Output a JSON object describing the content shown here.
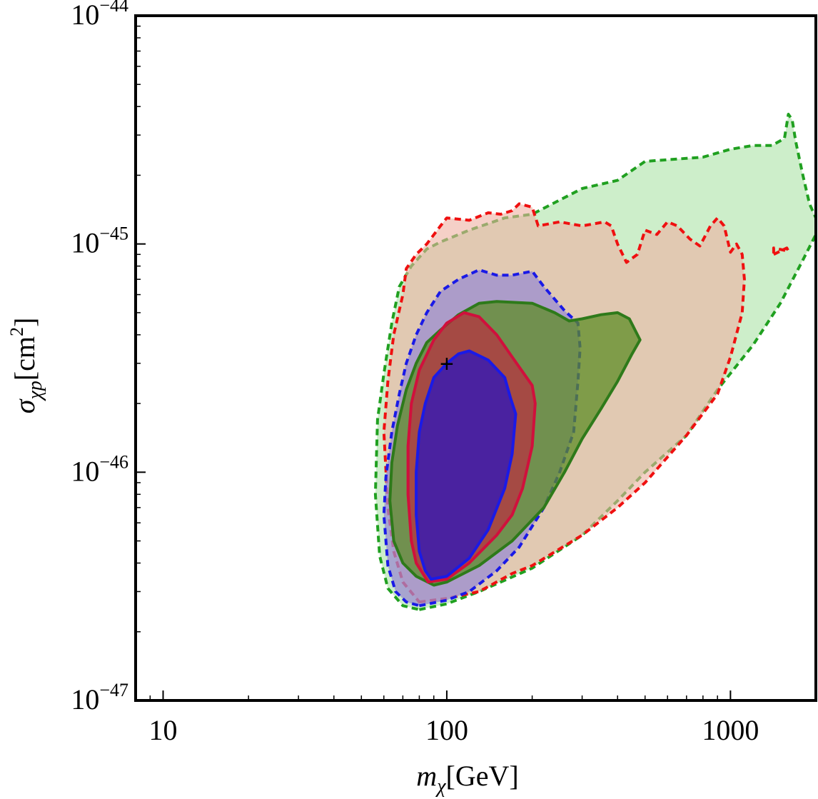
{
  "chart_data": {
    "type": "contour",
    "title": "",
    "xlabel": {
      "symbol": "m",
      "subscript": "χ",
      "unit": "[GeV]"
    },
    "ylabel": {
      "symbol": "σ",
      "subscript": "χp",
      "unit": "[cm",
      "unit_exp": "2",
      "unit_close": "]"
    },
    "xscale": "log",
    "yscale": "log",
    "xlim": [
      8,
      2000
    ],
    "ylim": [
      1e-47,
      1e-44
    ],
    "grid": false,
    "x_ticks": [
      {
        "value": 10,
        "label": "10"
      },
      {
        "value": 100,
        "label": "100"
      },
      {
        "value": 1000,
        "label": "1000"
      }
    ],
    "y_ticks": [
      {
        "value": 1e-47,
        "base": "10",
        "exp": "−47"
      },
      {
        "value": 1e-46,
        "base": "10",
        "exp": "−46"
      },
      {
        "value": 1e-45,
        "base": "10",
        "exp": "−45"
      },
      {
        "value": 1e-44,
        "base": "10",
        "exp": "−44"
      }
    ],
    "benchmark_marker": {
      "symbol": "+",
      "x": 100,
      "y": 3e-46
    },
    "regions": [
      {
        "name": "green-dashed-outer",
        "fill": "#c8ecc4",
        "fill_opacity": 0.9,
        "stroke": "#20a020",
        "dash": true,
        "points": [
          [
            80,
            2.5e-47
          ],
          [
            100,
            2.65e-47
          ],
          [
            130,
            3e-47
          ],
          [
            200,
            3.8e-47
          ],
          [
            300,
            5.3e-47
          ],
          [
            400,
            7.5e-47
          ],
          [
            500,
            1e-46
          ],
          [
            700,
            1.45e-46
          ],
          [
            900,
            2.3e-46
          ],
          [
            1200,
            3.6e-46
          ],
          [
            1500,
            5.5e-46
          ],
          [
            1800,
            8.5e-46
          ],
          [
            2000,
            1.1e-45
          ],
          [
            2000,
            1.3e-45
          ],
          [
            1900,
            1.5e-45
          ],
          [
            1800,
            2e-45
          ],
          [
            1700,
            2.8e-45
          ],
          [
            1650,
            3.5e-45
          ],
          [
            1600,
            3.7e-45
          ],
          [
            1550,
            2.9e-45
          ],
          [
            1400,
            2.7e-45
          ],
          [
            1200,
            2.7e-45
          ],
          [
            1000,
            2.6e-45
          ],
          [
            800,
            2.4e-45
          ],
          [
            500,
            2.3e-45
          ],
          [
            400,
            1.9e-45
          ],
          [
            300,
            1.75e-45
          ],
          [
            200,
            1.35e-45
          ],
          [
            160,
            1.3e-45
          ],
          [
            120,
            1.15e-45
          ],
          [
            95,
            1.02e-45
          ],
          [
            85,
            9.5e-46
          ],
          [
            75,
            8e-46
          ],
          [
            68,
            6.5e-46
          ],
          [
            64,
            4.5e-46
          ],
          [
            60,
            2.7e-46
          ],
          [
            57,
            1.7e-46
          ],
          [
            56,
            8e-47
          ],
          [
            58,
            4.3e-47
          ],
          [
            62,
            3.1e-47
          ],
          [
            70,
            2.6e-47
          ]
        ]
      },
      {
        "name": "red-dashed",
        "fill": "#efb1a1",
        "fill_opacity": 0.6,
        "stroke": "#ef1010",
        "dash": true,
        "points": [
          [
            80,
            2.7e-47
          ],
          [
            100,
            2.8e-47
          ],
          [
            130,
            3e-47
          ],
          [
            170,
            3.6e-47
          ],
          [
            200,
            3.9e-47
          ],
          [
            300,
            5.3e-47
          ],
          [
            400,
            7e-47
          ],
          [
            500,
            9e-47
          ],
          [
            700,
            1.45e-46
          ],
          [
            900,
            2.2e-46
          ],
          [
            1000,
            3.2e-46
          ],
          [
            1100,
            5e-46
          ],
          [
            1120,
            7e-46
          ],
          [
            1100,
            9e-46
          ],
          [
            1050,
            1e-45
          ],
          [
            1000,
            9.2e-46
          ],
          [
            950,
            1.2e-45
          ],
          [
            900,
            1.3e-45
          ],
          [
            850,
            1.2e-45
          ],
          [
            780,
            9.8e-46
          ],
          [
            720,
            1.05e-45
          ],
          [
            650,
            1.2e-45
          ],
          [
            600,
            1.25e-45
          ],
          [
            550,
            1.1e-45
          ],
          [
            500,
            1.15e-45
          ],
          [
            470,
            9e-46
          ],
          [
            430,
            8.3e-46
          ],
          [
            400,
            1e-45
          ],
          [
            380,
            1.2e-45
          ],
          [
            360,
            1.25e-45
          ],
          [
            300,
            1.2e-45
          ],
          [
            250,
            1.25e-45
          ],
          [
            210,
            1.2e-45
          ],
          [
            200,
            1.45e-45
          ],
          [
            180,
            1.5e-45
          ],
          [
            170,
            1.4e-45
          ],
          [
            155,
            1.35e-45
          ],
          [
            140,
            1.37e-45
          ],
          [
            120,
            1.27e-45
          ],
          [
            100,
            1.3e-45
          ],
          [
            95,
            1.2e-45
          ],
          [
            85,
            1e-45
          ],
          [
            78,
            9e-46
          ],
          [
            72,
            7.8e-46
          ],
          [
            70,
            6e-46
          ],
          [
            65,
            4e-46
          ],
          [
            62,
            2.5e-46
          ],
          [
            60,
            1.5e-46
          ],
          [
            62,
            7e-47
          ],
          [
            65,
            4.5e-47
          ],
          [
            70,
            3.3e-47
          ]
        ]
      },
      {
        "name": "blue-dashed",
        "fill": "#9a8cd0",
        "fill_opacity": 0.75,
        "stroke": "#1a1ae6",
        "dash": true,
        "points": [
          [
            80,
            2.6e-47
          ],
          [
            100,
            2.75e-47
          ],
          [
            120,
            3e-47
          ],
          [
            150,
            3.7e-47
          ],
          [
            180,
            4.7e-47
          ],
          [
            220,
            7e-47
          ],
          [
            250,
            1e-46
          ],
          [
            280,
            1.5e-46
          ],
          [
            290,
            2.5e-46
          ],
          [
            295,
            3.5e-46
          ],
          [
            290,
            4.5e-46
          ],
          [
            260,
            5.1e-46
          ],
          [
            220,
            6.5e-46
          ],
          [
            200,
            7.6e-46
          ],
          [
            170,
            7.3e-46
          ],
          [
            150,
            7.3e-46
          ],
          [
            130,
            7.7e-46
          ],
          [
            110,
            7e-46
          ],
          [
            95,
            6.2e-46
          ],
          [
            85,
            5e-46
          ],
          [
            78,
            4e-46
          ],
          [
            72,
            3e-46
          ],
          [
            68,
            2.2e-46
          ],
          [
            64,
            1.5e-46
          ],
          [
            61,
            9.5e-47
          ],
          [
            60,
            6.5e-47
          ],
          [
            62,
            3.9e-47
          ],
          [
            66,
            3e-47
          ],
          [
            72,
            2.7e-47
          ]
        ]
      },
      {
        "name": "green-solid",
        "fill": "#5e8c26",
        "fill_opacity": 0.75,
        "stroke": "#2e7a1a",
        "dash": false,
        "points": [
          [
            90,
            3.2e-47
          ],
          [
            100,
            3.3e-47
          ],
          [
            130,
            3.9e-47
          ],
          [
            170,
            5e-47
          ],
          [
            220,
            7e-47
          ],
          [
            260,
            1e-46
          ],
          [
            300,
            1.4e-46
          ],
          [
            350,
            1.9e-46
          ],
          [
            400,
            2.5e-46
          ],
          [
            450,
            3.3e-46
          ],
          [
            480,
            3.8e-46
          ],
          [
            440,
            4.7e-46
          ],
          [
            400,
            5e-46
          ],
          [
            350,
            4.9e-46
          ],
          [
            300,
            4.7e-46
          ],
          [
            270,
            4.6e-46
          ],
          [
            240,
            5e-46
          ],
          [
            200,
            5.5e-46
          ],
          [
            150,
            5.6e-46
          ],
          [
            130,
            5.5e-46
          ],
          [
            110,
            4.9e-46
          ],
          [
            95,
            4.2e-46
          ],
          [
            85,
            3.7e-46
          ],
          [
            78,
            3e-46
          ],
          [
            72,
            2.3e-46
          ],
          [
            67,
            1.6e-46
          ],
          [
            64,
            1.1e-46
          ],
          [
            63,
            7.5e-47
          ],
          [
            65,
            5e-47
          ],
          [
            70,
            4e-47
          ],
          [
            78,
            3.5e-47
          ]
        ]
      },
      {
        "name": "red-solid",
        "fill": "#d0103c",
        "fill_opacity": 0.55,
        "stroke": "#d0103c",
        "dash": false,
        "points": [
          [
            86,
            3.3e-47
          ],
          [
            100,
            3.4e-47
          ],
          [
            120,
            4e-47
          ],
          [
            150,
            5.3e-47
          ],
          [
            170,
            6.5e-47
          ],
          [
            185,
            8.5e-47
          ],
          [
            200,
            1.3e-46
          ],
          [
            205,
            2e-46
          ],
          [
            200,
            2.4e-46
          ],
          [
            170,
            3.2e-46
          ],
          [
            150,
            4e-46
          ],
          [
            130,
            4.8e-46
          ],
          [
            115,
            5e-46
          ],
          [
            100,
            4.5e-46
          ],
          [
            90,
            3.8e-46
          ],
          [
            80,
            2.8e-46
          ],
          [
            75,
            2e-46
          ],
          [
            73,
            1.3e-46
          ],
          [
            73,
            8e-47
          ],
          [
            75,
            5e-47
          ],
          [
            78,
            4e-47
          ]
        ]
      },
      {
        "name": "blue-solid",
        "fill": "#4a22a0",
        "fill_opacity": 1.0,
        "stroke": "#1a1ae6",
        "dash": false,
        "points": [
          [
            88,
            3.4e-47
          ],
          [
            100,
            3.5e-47
          ],
          [
            120,
            4.2e-47
          ],
          [
            140,
            5.6e-47
          ],
          [
            160,
            8.5e-47
          ],
          [
            170,
            1.2e-46
          ],
          [
            175,
            1.8e-46
          ],
          [
            168,
            2.1e-46
          ],
          [
            160,
            2.6e-46
          ],
          [
            140,
            3.1e-46
          ],
          [
            120,
            3.4e-46
          ],
          [
            110,
            3.3e-46
          ],
          [
            100,
            3e-46
          ],
          [
            90,
            2.6e-46
          ],
          [
            84,
            2e-46
          ],
          [
            80,
            1.5e-46
          ],
          [
            78,
            1e-46
          ],
          [
            78,
            6.5e-47
          ],
          [
            80,
            4.5e-47
          ],
          [
            84,
            3.7e-47
          ]
        ]
      },
      {
        "name": "red-dashed-island",
        "fill": "none",
        "fill_opacity": 0,
        "stroke": "#ef1010",
        "dash": true,
        "points": [
          [
            1420,
            9e-46
          ],
          [
            1580,
            9.6e-46
          ],
          [
            1600,
            9.3e-46
          ],
          [
            1420,
            9.6e-46
          ]
        ]
      }
    ]
  }
}
